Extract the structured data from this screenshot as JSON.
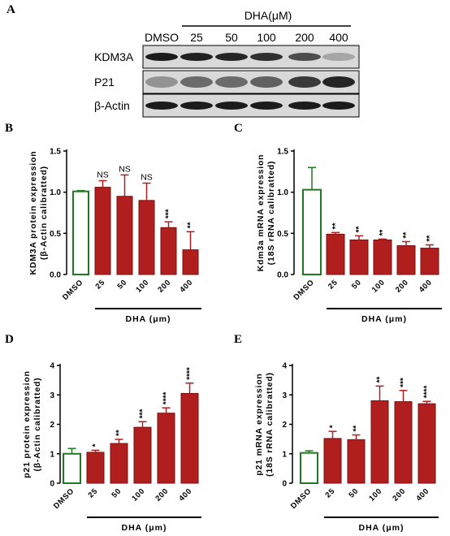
{
  "panel_letters": {
    "a": "A",
    "b": "B",
    "c": "C",
    "d": "D",
    "e": "E"
  },
  "blot": {
    "group_header": "DHA(μM)",
    "lane_labels": [
      "DMSO",
      "25",
      "50",
      "100",
      "200",
      "400"
    ],
    "row_labels": [
      "KDM3A",
      "P21",
      "β-Actin"
    ]
  },
  "chart_data": [
    {
      "panel": "B",
      "type": "bar",
      "categories": [
        "DMSO",
        "25",
        "50",
        "100",
        "200",
        "400"
      ],
      "values": [
        1.01,
        1.06,
        0.95,
        0.9,
        0.57,
        0.3
      ],
      "errors": [
        0.01,
        0.08,
        0.26,
        0.21,
        0.07,
        0.22
      ],
      "significance": [
        "",
        "NS",
        "NS",
        "NS",
        "***",
        "**"
      ],
      "ylabel_lines": [
        "KDM3A protein expression",
        "(β-Actin calibratted)"
      ],
      "xlabel": "DHA (μm)",
      "yticks": [
        "0.0",
        "0.5",
        "1.0",
        "1.5"
      ],
      "ylim": [
        0,
        1.5
      ],
      "control_color": "#1e7a1e",
      "bar_color": "#b01e1e"
    },
    {
      "panel": "C",
      "type": "bar",
      "categories": [
        "DMSO",
        "25",
        "50",
        "100",
        "200",
        "400"
      ],
      "values": [
        1.03,
        0.49,
        0.42,
        0.42,
        0.35,
        0.32
      ],
      "errors": [
        0.27,
        0.02,
        0.05,
        0.01,
        0.05,
        0.04
      ],
      "significance": [
        "",
        "**",
        "**",
        "**",
        "**",
        "**"
      ],
      "ylabel_lines": [
        "Kdm3a mRNA expression",
        "(18S rRNA calibratted)"
      ],
      "xlabel": "DHA (μm)",
      "yticks": [
        "0.0",
        "0.5",
        "1.0",
        "1.5"
      ],
      "ylim": [
        0,
        1.5
      ],
      "control_color": "#1e7a1e",
      "bar_color": "#b01e1e"
    },
    {
      "panel": "D",
      "type": "bar",
      "categories": [
        "DMSO",
        "25",
        "50",
        "100",
        "200",
        "400"
      ],
      "values": [
        1.0,
        1.05,
        1.35,
        1.9,
        2.38,
        3.05
      ],
      "errors": [
        0.18,
        0.07,
        0.14,
        0.19,
        0.18,
        0.35
      ],
      "significance": [
        "",
        "*",
        "**",
        "***",
        "****",
        "****"
      ],
      "ylabel_lines": [
        "p21 protein expression",
        "(β-Actin calibratted)"
      ],
      "xlabel": "DHA (μm)",
      "yticks": [
        "0",
        "1",
        "2",
        "3",
        "4"
      ],
      "ylim": [
        0,
        4
      ],
      "control_color": "#1e7a1e",
      "bar_color": "#b01e1e"
    },
    {
      "panel": "E",
      "type": "bar",
      "categories": [
        "DMSO",
        "25",
        "50",
        "100",
        "200",
        "400"
      ],
      "values": [
        1.03,
        1.52,
        1.48,
        2.8,
        2.77,
        2.7
      ],
      "errors": [
        0.07,
        0.24,
        0.16,
        0.5,
        0.38,
        0.08
      ],
      "significance": [
        "",
        "*",
        "**",
        "**",
        "***",
        "****"
      ],
      "ylabel_lines": [
        "p21 mRNA expression",
        "(18S rRNA calibratted)"
      ],
      "xlabel": "DHA (μm)",
      "yticks": [
        "0",
        "1",
        "2",
        "3",
        "4"
      ],
      "ylim": [
        0,
        4
      ],
      "control_color": "#1e7a1e",
      "bar_color": "#b01e1e"
    }
  ]
}
